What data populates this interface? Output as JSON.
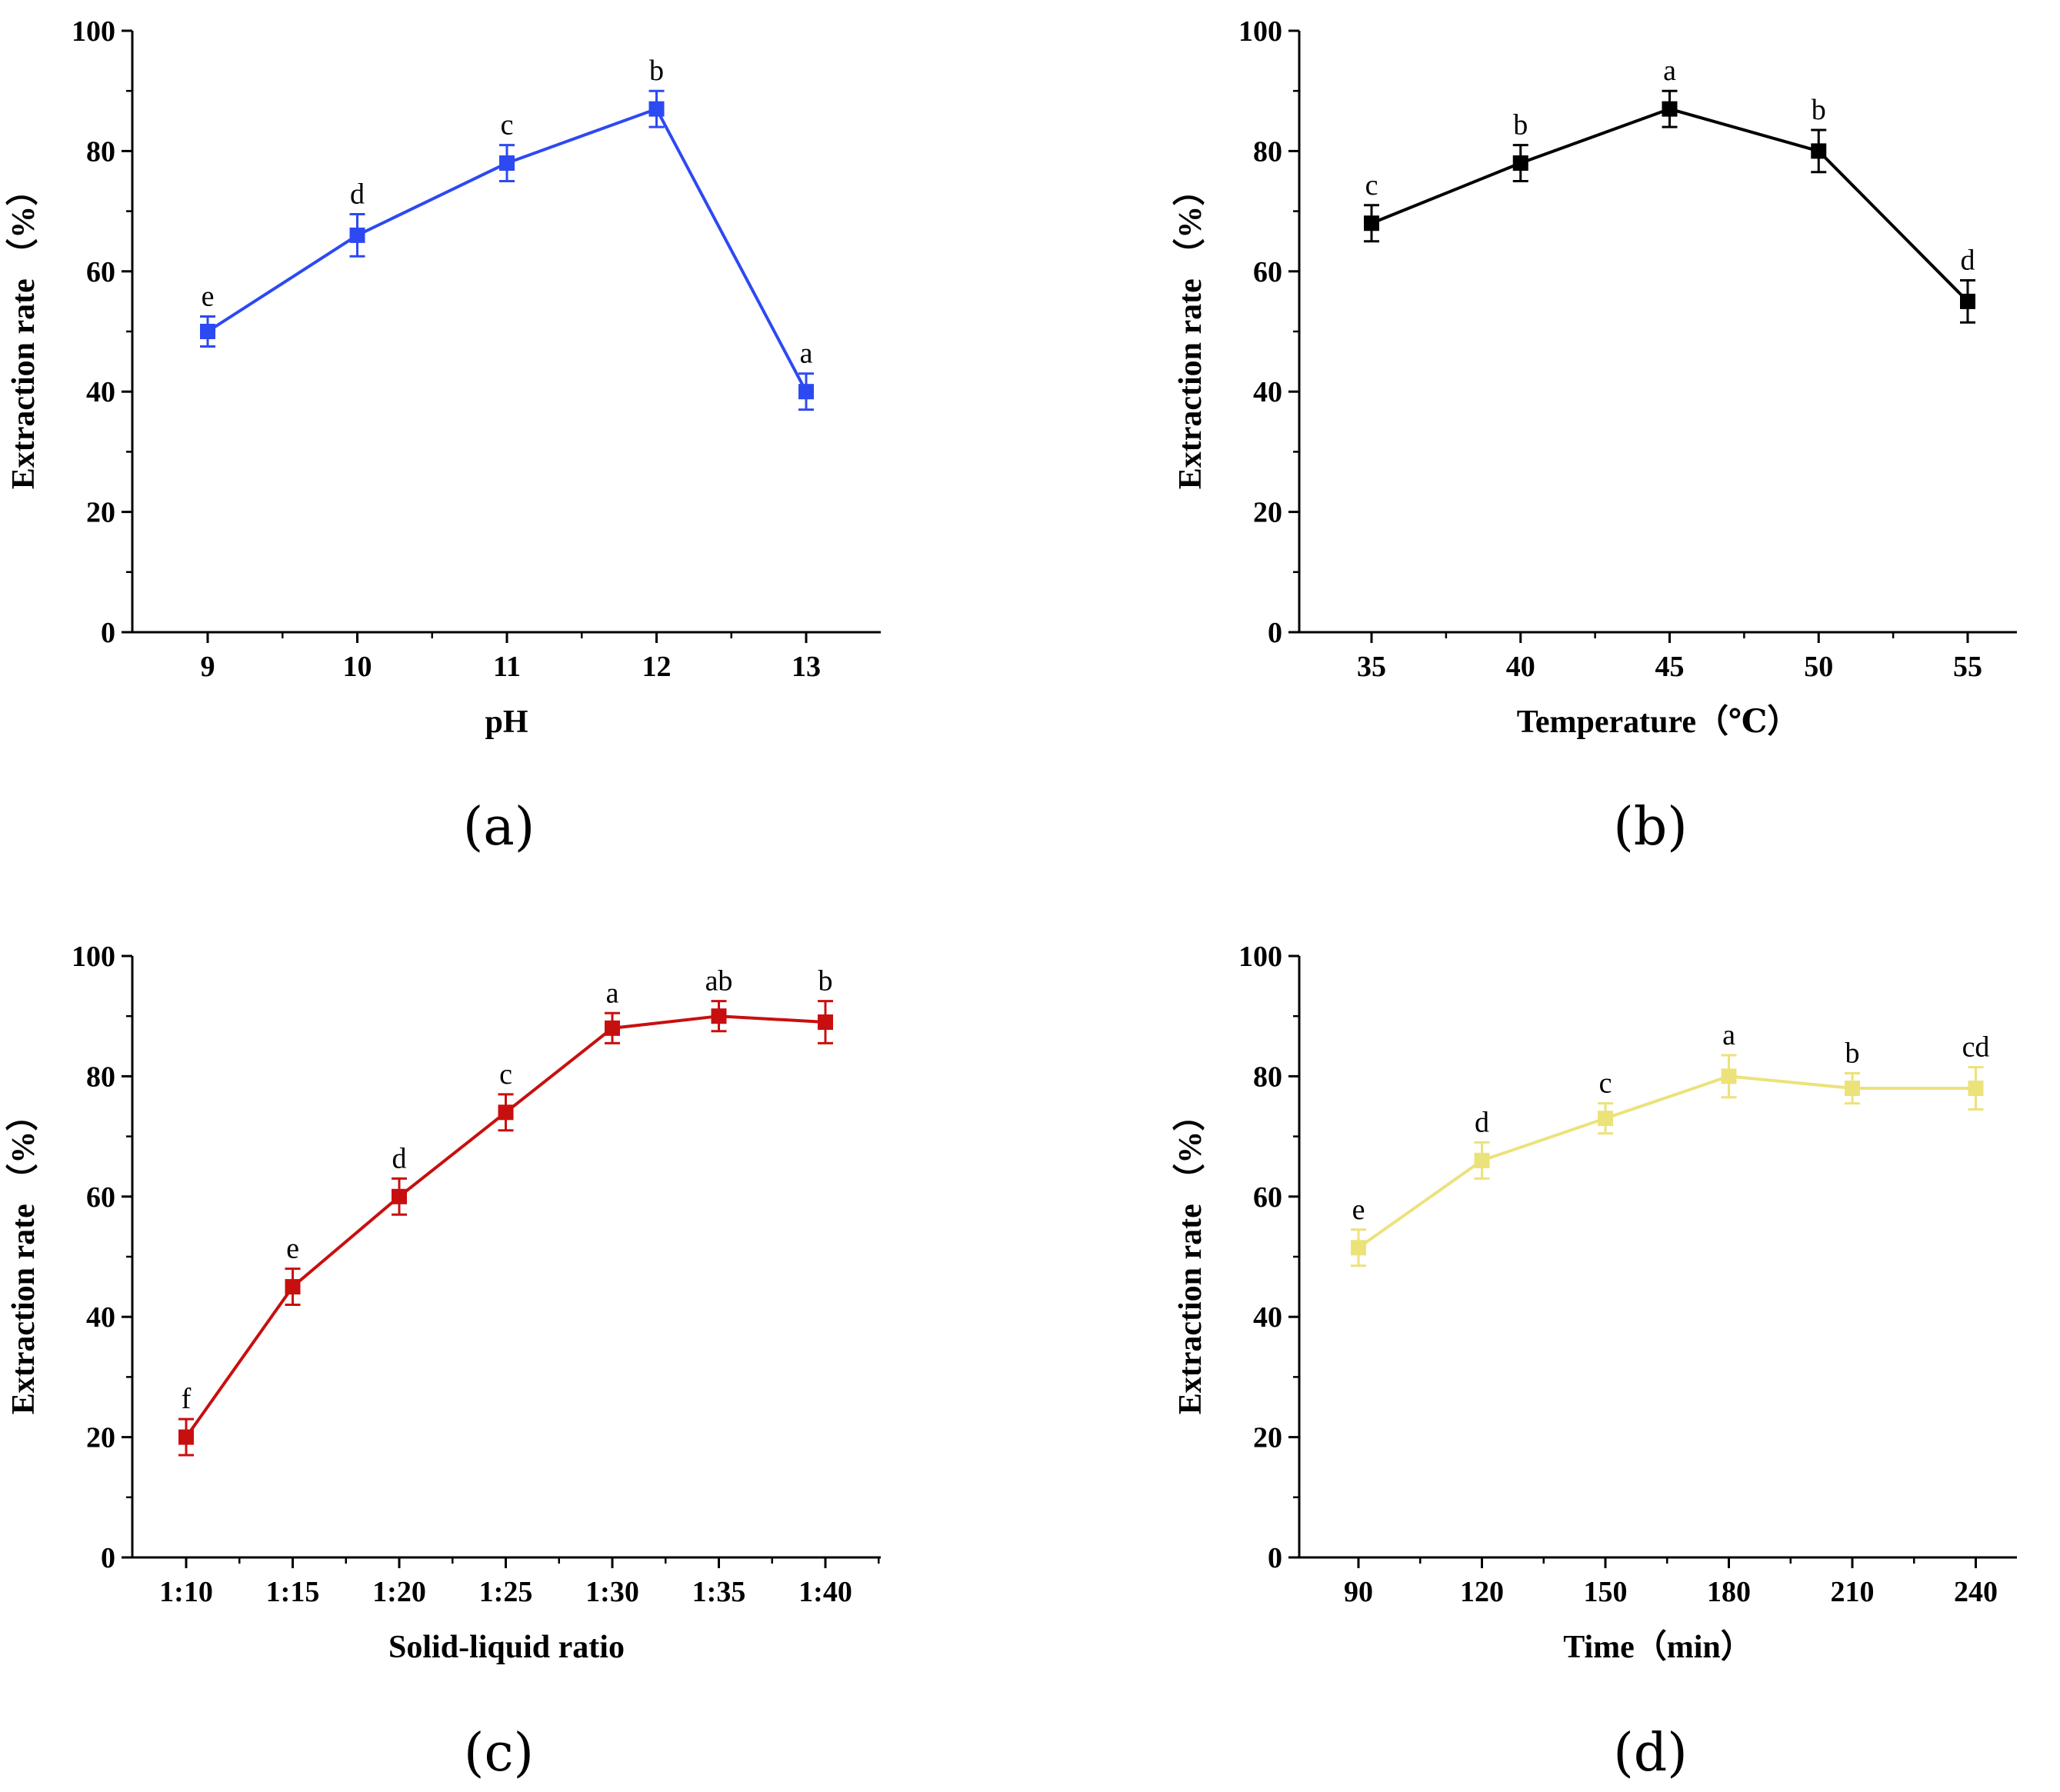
{
  "chart_data": [
    {
      "type": "line",
      "panel_label": "(a)",
      "xlabel": "pH",
      "ylabel": "Extraction rate （%）",
      "color": "#2d49f2",
      "x_ticks": [
        "9",
        "10",
        "11",
        "12",
        "13"
      ],
      "ylim": [
        0,
        100
      ],
      "y_ticks": [
        0,
        20,
        40,
        60,
        80,
        100
      ],
      "grid": false,
      "series": [
        {
          "name": "pH",
          "values": [
            50,
            66,
            78,
            87,
            40
          ],
          "errors": [
            2.5,
            3.5,
            3,
            3,
            3
          ],
          "letters": [
            "e",
            "d",
            "c",
            "b",
            "a"
          ]
        }
      ]
    },
    {
      "type": "line",
      "panel_label": "(b)",
      "xlabel": "Temperature（℃）",
      "ylabel": "Extraction rate （%）",
      "color": "#000000",
      "x_ticks": [
        "35",
        "40",
        "45",
        "50",
        "55"
      ],
      "ylim": [
        0,
        100
      ],
      "y_ticks": [
        0,
        20,
        40,
        60,
        80,
        100
      ],
      "grid": false,
      "series": [
        {
          "name": "Temperature",
          "values": [
            68,
            78,
            87,
            80,
            55
          ],
          "errors": [
            3,
            3,
            3,
            3.5,
            3.5
          ],
          "letters": [
            "c",
            "b",
            "a",
            "b",
            "d"
          ]
        }
      ]
    },
    {
      "type": "line",
      "panel_label": "(c)",
      "xlabel": "Solid-liquid ratio",
      "ylabel": "Extraction rate （%）",
      "color": "#c80f0f",
      "x_ticks": [
        "1:10",
        "1:15",
        "1:20",
        "1:25",
        "1:30",
        "1:35",
        "1:40"
      ],
      "ylim": [
        0,
        100
      ],
      "y_ticks": [
        0,
        20,
        40,
        60,
        80,
        100
      ],
      "grid": false,
      "series": [
        {
          "name": "Solid-liquid ratio",
          "values": [
            20,
            45,
            60,
            74,
            88,
            90,
            89
          ],
          "errors": [
            3,
            3,
            3,
            3,
            2.5,
            2.5,
            3.5
          ],
          "letters": [
            "f",
            "e",
            "d",
            "c",
            "a",
            "ab",
            "b"
          ]
        }
      ]
    },
    {
      "type": "line",
      "panel_label": "(d)",
      "xlabel": "Time（min）",
      "ylabel": "Extraction rate （%）",
      "color": "#ece27a",
      "x_ticks": [
        "90",
        "120",
        "150",
        "180",
        "210",
        "240"
      ],
      "ylim": [
        0,
        100
      ],
      "y_ticks": [
        0,
        20,
        40,
        60,
        80,
        100
      ],
      "grid": false,
      "series": [
        {
          "name": "Time",
          "values": [
            51.5,
            66,
            73,
            80,
            78,
            78
          ],
          "errors": [
            3,
            3,
            2.5,
            3.5,
            2.5,
            3.5
          ],
          "letters": [
            "e",
            "d",
            "c",
            "a",
            "b",
            "cd"
          ]
        }
      ]
    }
  ]
}
